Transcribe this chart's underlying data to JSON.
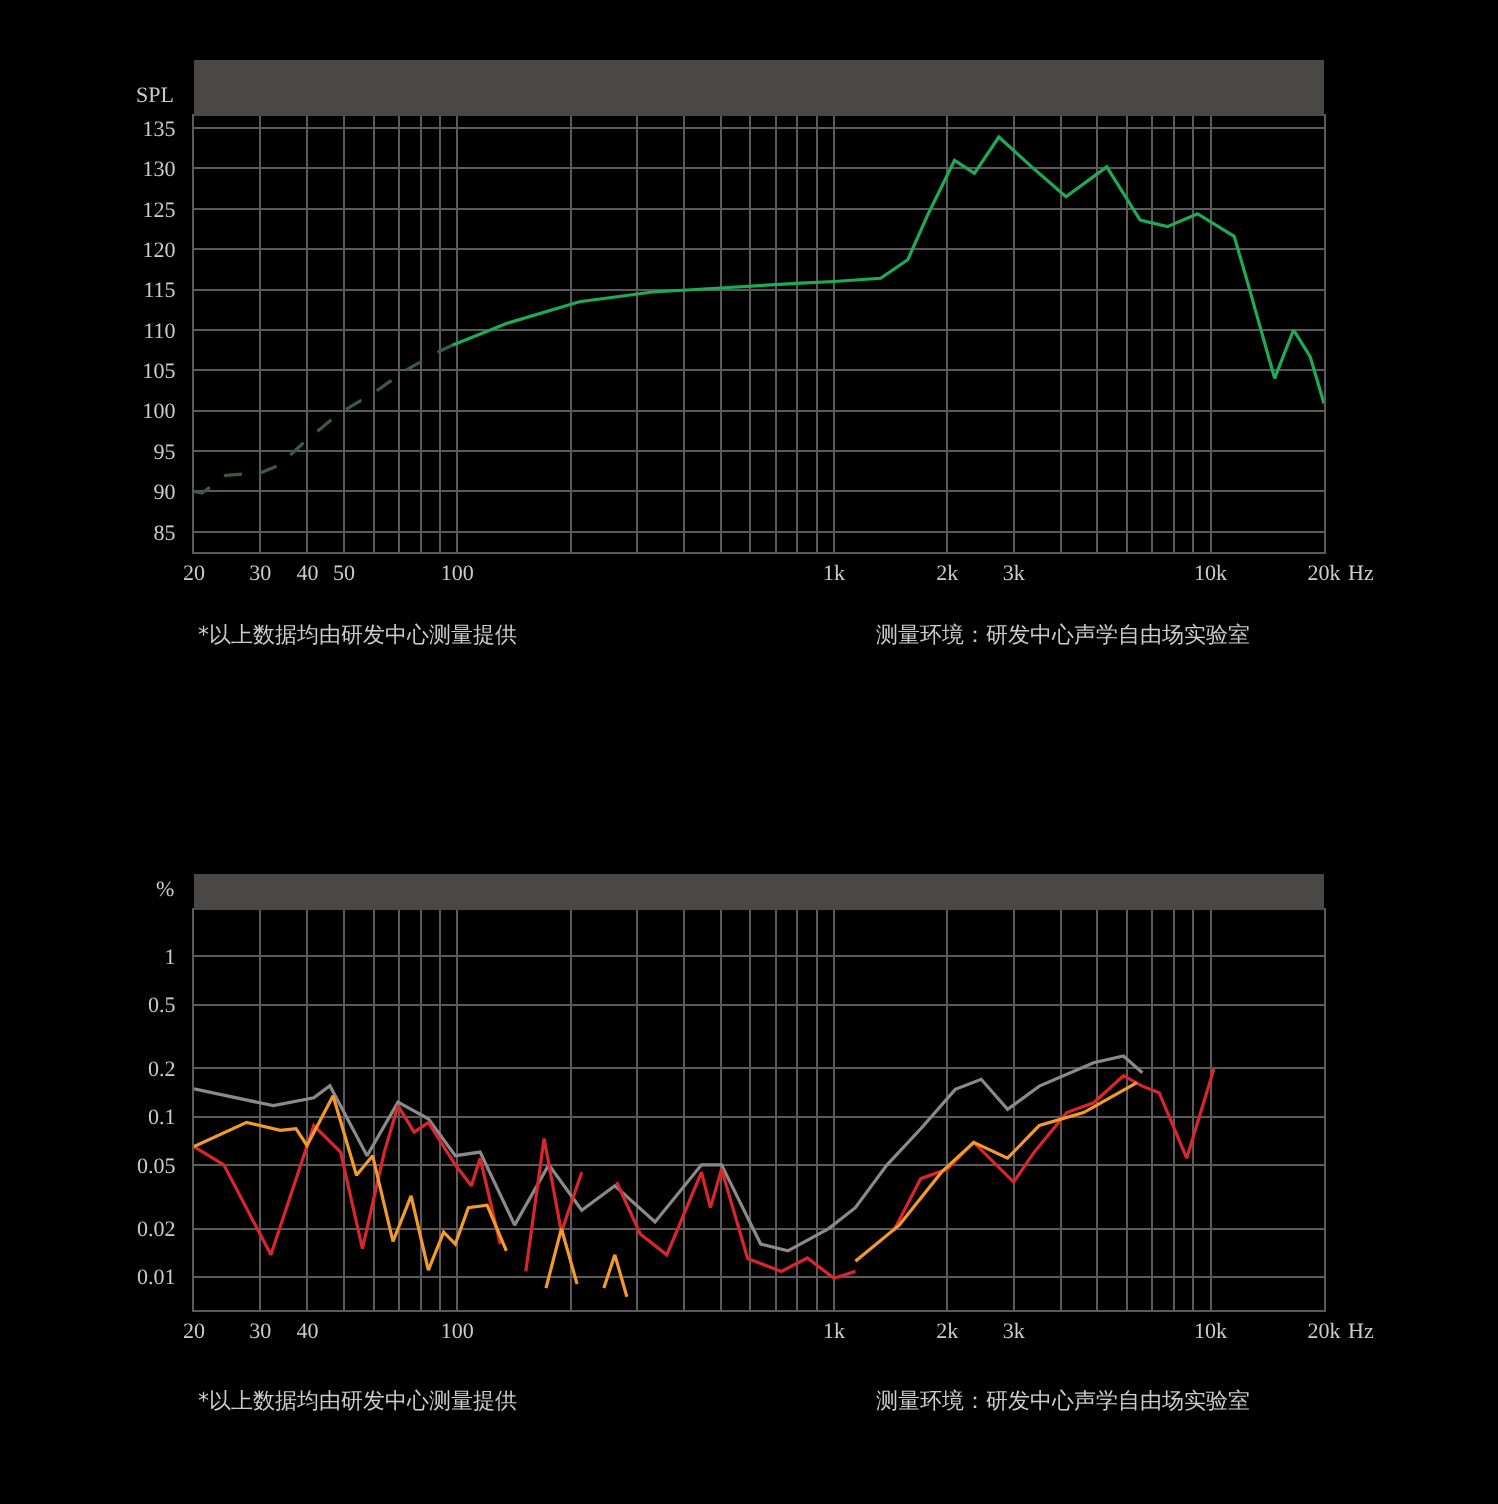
{
  "chart_data": [
    {
      "type": "line",
      "ylabel": "SPL",
      "xlabel": "Hz",
      "log": "x",
      "grid": true,
      "xlim": [
        20,
        20000
      ],
      "ylim": [
        82.5,
        136.5
      ],
      "xticks": [
        20,
        30,
        40,
        50,
        {
          "value": 60,
          "label": null
        },
        {
          "value": 70,
          "label": null
        },
        {
          "value": 80,
          "label": null
        },
        {
          "value": 90,
          "label": null
        },
        100,
        {
          "value": 200,
          "label": null
        },
        {
          "value": 300,
          "label": null
        },
        {
          "value": 400,
          "label": null
        },
        {
          "value": 500,
          "label": null
        },
        {
          "value": 600,
          "label": null
        },
        {
          "value": 700,
          "label": null
        },
        {
          "value": 800,
          "label": null
        },
        {
          "value": 900,
          "label": null
        },
        {
          "value": 1000,
          "label": "1k"
        },
        {
          "value": 2000,
          "label": "2k"
        },
        {
          "value": 3000,
          "label": "3k"
        },
        {
          "value": 4000,
          "label": null
        },
        {
          "value": 5000,
          "label": null
        },
        {
          "value": 6000,
          "label": null
        },
        {
          "value": 7000,
          "label": null
        },
        {
          "value": 8000,
          "label": null
        },
        {
          "value": 9000,
          "label": null
        },
        {
          "value": 10000,
          "label": "10k"
        },
        {
          "value": 20000,
          "label": "20k"
        }
      ],
      "yticks": [
        85,
        90,
        95,
        100,
        105,
        110,
        115,
        120,
        125,
        130,
        135
      ],
      "series": [
        {
          "color": "#3a5a48",
          "line_style": "dashed",
          "x": [
            20,
            21,
            24.3,
            30,
            33.8,
            39,
            48.7,
            60,
            73,
            90,
            97
          ],
          "values": [
            90,
            89.8,
            92,
            92.3,
            93.3,
            96,
            99.7,
            102.2,
            105,
            107.4,
            108.1
          ]
        },
        {
          "color": "#1faa55",
          "line_style": "solid",
          "x": [
            97,
            135,
            211,
            330,
            500,
            816,
            1000,
            1330,
            1570,
            1780,
            2090,
            2360,
            2740,
            3350,
            4130,
            5300,
            6500,
            7680,
            9230,
            11550,
            12480,
            14790,
            16600,
            18380,
            20000
          ],
          "values": [
            108.1,
            110.8,
            113.5,
            114.7,
            115.2,
            115.8,
            116,
            116.4,
            118.7,
            124.4,
            131,
            129.4,
            133.9,
            130.2,
            126.5,
            130.2,
            123.6,
            122.8,
            124.4,
            121.6,
            116.2,
            104,
            110,
            106.7,
            100.9
          ]
        }
      ],
      "annotations": [
        "*以上数据均由研发中心测量提供",
        "测量环境：研发中心声学自由场实验室"
      ]
    },
    {
      "type": "line",
      "ylabel": "%",
      "xlabel": "Hz",
      "log": "xy",
      "grid": true,
      "xlim": [
        20,
        20000
      ],
      "ylim": [
        0.0062,
        1.95
      ],
      "xticks": [
        20,
        30,
        40,
        {
          "value": 50,
          "label": null
        },
        {
          "value": 60,
          "label": null
        },
        {
          "value": 70,
          "label": null
        },
        {
          "value": 80,
          "label": null
        },
        {
          "value": 90,
          "label": null
        },
        100,
        {
          "value": 200,
          "label": null
        },
        {
          "value": 300,
          "label": null
        },
        {
          "value": 400,
          "label": null
        },
        {
          "value": 500,
          "label": null
        },
        {
          "value": 600,
          "label": null
        },
        {
          "value": 700,
          "label": null
        },
        {
          "value": 800,
          "label": null
        },
        {
          "value": 900,
          "label": null
        },
        {
          "value": 1000,
          "label": "1k"
        },
        {
          "value": 2000,
          "label": "2k"
        },
        {
          "value": 3000,
          "label": "3k"
        },
        {
          "value": 4000,
          "label": null
        },
        {
          "value": 5000,
          "label": null
        },
        {
          "value": 6000,
          "label": null
        },
        {
          "value": 7000,
          "label": null
        },
        {
          "value": 8000,
          "label": null
        },
        {
          "value": 9000,
          "label": null
        },
        {
          "value": 10000,
          "label": "10k"
        },
        {
          "value": 20000,
          "label": "20k"
        }
      ],
      "yticks": [
        0.01,
        0.02,
        0.05,
        0.1,
        0.2,
        0.5,
        1
      ],
      "series": [
        {
          "color": "#8a8a8a",
          "x": [
            20,
            32.5,
            41.6,
            45.9,
            57.6,
            69.6,
            83.8,
            98.8,
            115,
            142,
            175,
            214,
            262,
            335,
            445,
            503,
            639,
            755,
            968,
            1140,
            1380,
            1700,
            2100,
            2460,
            2890,
            3510,
            4890,
            5870,
            6590
          ],
          "values": [
            0.149,
            0.117,
            0.131,
            0.156,
            0.057,
            0.123,
            0.097,
            0.057,
            0.06,
            0.021,
            0.05,
            0.026,
            0.037,
            0.022,
            0.05,
            0.05,
            0.016,
            0.0145,
            0.02,
            0.027,
            0.0496,
            0.084,
            0.148,
            0.171,
            0.111,
            0.155,
            0.217,
            0.239,
            0.188
          ]
        },
        {
          "color": "#d8262c",
          "x": [
            20,
            24,
            32,
            41.6,
            49,
            56,
            64,
            69.6,
            76.8,
            83.8,
            98.8,
            109,
            115,
            130,
            142,
            152,
            170,
            189,
            214,
            235,
            265,
            306,
            360,
            445,
            470,
            503,
            590,
            725,
            850,
            1000,
            1140,
            1300,
            1440,
            1700,
            2000,
            2350,
            3000,
            3400,
            4150,
            4890,
            5870,
            6590,
            7300,
            8640,
            10200
          ],
          "values": [
            0.065,
            0.05,
            0.0137,
            0.088,
            0.06,
            0.015,
            0.06,
            0.117,
            0.08,
            0.092,
            0.05,
            0.037,
            0.055,
            0.016,
            null,
            0.0108,
            0.073,
            0.019,
            0.045,
            null,
            0.039,
            0.0185,
            0.0137,
            0.045,
            0.027,
            0.047,
            0.013,
            0.0108,
            0.0131,
            0.0098,
            0.0108,
            null,
            0.0193,
            0.041,
            0.047,
            0.069,
            0.039,
            0.06,
            0.106,
            0.122,
            0.18,
            0.155,
            0.141,
            0.055,
            0.198
          ]
        },
        {
          "color": "#f39a2a",
          "x": [
            20,
            27.6,
            33.9,
            37.3,
            39.9,
            46.8,
            54,
            59.6,
            67.5,
            75.4,
            83.8,
            92,
            98.8,
            107,
            120,
            135,
            146,
            172,
            189,
            208,
            220,
            245,
            262,
            282,
            300,
            1000,
            1140,
            1490,
            1930,
            2350,
            2890,
            3510,
            4600,
            6370
          ],
          "values": [
            0.065,
            0.092,
            0.082,
            0.084,
            0.066,
            0.135,
            0.043,
            0.057,
            0.0166,
            0.032,
            0.011,
            0.019,
            0.016,
            0.027,
            0.028,
            0.0145,
            null,
            0.0085,
            0.02,
            0.009,
            null,
            0.0085,
            0.0137,
            0.0075,
            null,
            null,
            0.0125,
            0.021,
            0.045,
            0.069,
            0.055,
            0.088,
            0.106,
            0.163
          ]
        }
      ],
      "annotations": [
        "*以上数据均由研发中心测量提供",
        "测量环境：研发中心声学自由场实验室"
      ]
    }
  ]
}
